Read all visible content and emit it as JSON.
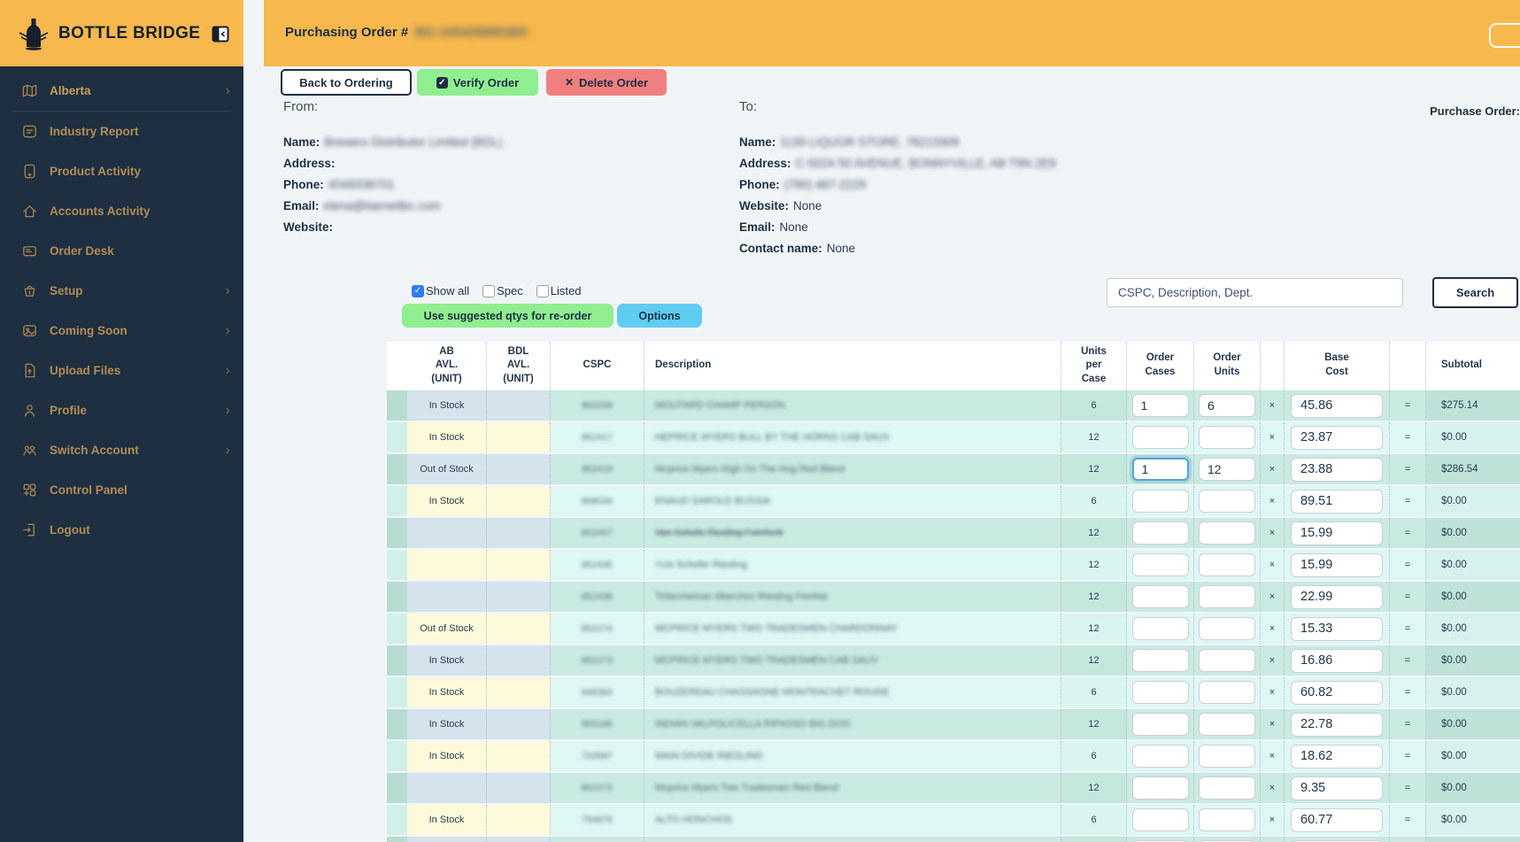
{
  "sidebar": {
    "logo_text": "BOTTLE BRIDGE",
    "items": [
      {
        "label": "Alberta",
        "icon": "map-icon",
        "chevron": true,
        "divider_after": true,
        "active": true
      },
      {
        "label": "Industry Report",
        "icon": "report-icon",
        "chevron": false
      },
      {
        "label": "Product Activity",
        "icon": "product-icon",
        "chevron": false
      },
      {
        "label": "Accounts Activity",
        "icon": "home-icon",
        "chevron": false
      },
      {
        "label": "Order Desk",
        "icon": "order-desk-icon",
        "chevron": false
      },
      {
        "label": "Setup",
        "icon": "basket-icon",
        "chevron": true
      },
      {
        "label": "Coming Soon",
        "icon": "image-icon",
        "chevron": true
      },
      {
        "label": "Upload Files",
        "icon": "upload-icon",
        "chevron": true
      },
      {
        "label": "Profile",
        "icon": "person-icon",
        "chevron": true
      },
      {
        "label": "Switch Account",
        "icon": "people-icon",
        "chevron": true
      },
      {
        "label": "Control Panel",
        "icon": "grid-plus-icon",
        "chevron": false
      },
      {
        "label": "Logout",
        "icon": "logout-icon",
        "chevron": false
      }
    ]
  },
  "header": {
    "title": "Purchasing Order #",
    "order_number_redacted": "BO-100435880365"
  },
  "toolbar": {
    "back_label": "Back to Ordering",
    "verify_label": "Verify Order",
    "delete_label": "Delete Order"
  },
  "purchase_order_label": "Purchase Order:",
  "from": {
    "section_label": "From:",
    "name_label": "Name:",
    "name_value_redacted": "Brewers Distributor Limited (BDL)",
    "address_label": "Address:",
    "address_value": "",
    "phone_label": "Phone:",
    "phone_value_redacted": "4049338701",
    "email_label": "Email:",
    "email_value_redacted": "elena@barnettbc.com",
    "website_label": "Website:",
    "website_value": ""
  },
  "to": {
    "section_label": "To:",
    "name_label": "Name:",
    "name_value_redacted": "1139 LIQUOR STORE, 78213309",
    "address_label": "Address:",
    "address_value_redacted": "C-5024 50 AVENUE, BONNYVILLE, AB T9N 2E9",
    "phone_label": "Phone:",
    "phone_value_redacted": "(780) 487-2229",
    "website_label": "Website:",
    "website_value": "None",
    "email_label": "Email:",
    "email_value": "None",
    "contact_label": "Contact name:",
    "contact_value": "None"
  },
  "filters": {
    "show_all": {
      "label": "Show all",
      "checked": true
    },
    "spec": {
      "label": "Spec",
      "checked": false
    },
    "listed": {
      "label": "Listed",
      "checked": false
    }
  },
  "actions": {
    "suggested_label": "Use suggested qtys for re-order",
    "options_label": "Options"
  },
  "search": {
    "placeholder": "CSPC, Description, Dept.",
    "button_label": "Search"
  },
  "table": {
    "multiply_symbol": "×",
    "equals_symbol": "=",
    "header_cells": [
      {
        "key": "ind",
        "lines": []
      },
      {
        "key": "ab",
        "lines": [
          "AB",
          "AVL.",
          "(UNIT)"
        ]
      },
      {
        "key": "bdl",
        "lines": [
          "BDL",
          "AVL.",
          "(UNIT)"
        ]
      },
      {
        "key": "cspc",
        "lines": [
          "CSPC"
        ]
      },
      {
        "key": "desc",
        "lines": [
          "Description"
        ]
      },
      {
        "key": "units",
        "lines": [
          "Units",
          "per",
          "Case"
        ]
      },
      {
        "key": "cases",
        "lines": [
          "Order",
          "Cases"
        ]
      },
      {
        "key": "ounits",
        "lines": [
          "Order",
          "Units"
        ]
      },
      {
        "key": "x",
        "lines": []
      },
      {
        "key": "base",
        "lines": [
          "Base",
          "Cost"
        ]
      },
      {
        "key": "eq",
        "lines": []
      },
      {
        "key": "sub",
        "lines": [
          "Subtotal"
        ]
      }
    ],
    "rows": [
      {
        "stock": "In Stock",
        "cspc_redacted": "802259",
        "description_redacted": "MOUTARD CHAMP PERSON",
        "strikethrough": false,
        "units_per_case": "6",
        "order_cases": "1",
        "order_units": "6",
        "base_cost": "45.86",
        "subtotal": "$275.14",
        "tone": "mint",
        "focused": false
      },
      {
        "stock": "In Stock",
        "cspc_redacted": "852417",
        "description_redacted": "HEPRICE MYERS BULL BY THE HORNS CAB SAUV",
        "strikethrough": false,
        "units_per_case": "12",
        "order_cases": "",
        "order_units": "",
        "base_cost": "23.87",
        "subtotal": "$0.00",
        "tone": "cyan",
        "focused": false
      },
      {
        "stock": "Out of Stock",
        "cspc_redacted": "852419",
        "description_redacted": "Mcprice Myers High On The Hog Red Blend",
        "strikethrough": false,
        "units_per_case": "12",
        "order_cases": "1",
        "order_units": "12",
        "base_cost": "23.88",
        "subtotal": "$286.54",
        "tone": "mint",
        "focused": true
      },
      {
        "stock": "In Stock",
        "cspc_redacted": "808034",
        "description_redacted": "ENAUD SAROLD BUSSIA",
        "strikethrough": false,
        "units_per_case": "6",
        "order_cases": "",
        "order_units": "",
        "base_cost": "89.51",
        "subtotal": "$0.00",
        "tone": "cyan",
        "focused": false
      },
      {
        "stock": "",
        "cspc_redacted": "852457",
        "description_redacted": "Van Schofe Riesling Feinherb",
        "strikethrough": true,
        "units_per_case": "12",
        "order_cases": "",
        "order_units": "",
        "base_cost": "15.99",
        "subtotal": "$0.00",
        "tone": "mint",
        "focused": false
      },
      {
        "stock": "",
        "cspc_redacted": "852436",
        "description_redacted": "Ycis Schofer Riesling",
        "strikethrough": false,
        "units_per_case": "12",
        "order_cases": "",
        "order_units": "",
        "base_cost": "15.99",
        "subtotal": "$0.00",
        "tone": "cyan",
        "focused": false
      },
      {
        "stock": "",
        "cspc_redacted": "852438",
        "description_redacted": "Trittenheimer Altarchen Riesling Feinher",
        "strikethrough": false,
        "units_per_case": "12",
        "order_cases": "",
        "order_units": "",
        "base_cost": "22.99",
        "subtotal": "$0.00",
        "tone": "mint",
        "focused": false
      },
      {
        "stock": "Out of Stock",
        "cspc_redacted": "852274",
        "description_redacted": "MCPRICE MYERS TWO TRADESMEN CHARDONNAY",
        "strikethrough": false,
        "units_per_case": "12",
        "order_cases": "",
        "order_units": "",
        "base_cost": "15.33",
        "subtotal": "$0.00",
        "tone": "cyan",
        "focused": false
      },
      {
        "stock": "In Stock",
        "cspc_redacted": "852273",
        "description_redacted": "MCPRICE MYERS TWO TRADESMEN CAB SAUV",
        "strikethrough": false,
        "units_per_case": "12",
        "order_cases": "",
        "order_units": "",
        "base_cost": "16.86",
        "subtotal": "$0.00",
        "tone": "mint",
        "focused": false
      },
      {
        "stock": "In Stock",
        "cspc_redacted": "848384",
        "description_redacted": "BOUZEREAU CHASSAGNE MONTRACHET ROUGE",
        "strikethrough": false,
        "units_per_case": "6",
        "order_cases": "",
        "order_units": "",
        "base_cost": "60.82",
        "subtotal": "$0.00",
        "tone": "cyan",
        "focused": false
      },
      {
        "stock": "In Stock",
        "cspc_redacted": "855180",
        "description_redacted": "INDIAN VALPOLICELLA RIPASSO BIG DOG",
        "strikethrough": false,
        "units_per_case": "12",
        "order_cases": "",
        "order_units": "",
        "base_cost": "22.78",
        "subtotal": "$0.00",
        "tone": "mint",
        "focused": false
      },
      {
        "stock": "In Stock",
        "cspc_redacted": "743587",
        "description_redacted": "MAIN DIVIDE RIESLING",
        "strikethrough": false,
        "units_per_case": "6",
        "order_cases": "",
        "order_units": "",
        "base_cost": "18.62",
        "subtotal": "$0.00",
        "tone": "cyan",
        "focused": false
      },
      {
        "stock": "",
        "cspc_redacted": "852272",
        "description_redacted": "Mcprice Myers Two Tradesmen Red Blend",
        "strikethrough": false,
        "units_per_case": "12",
        "order_cases": "",
        "order_units": "",
        "base_cost": "9.35",
        "subtotal": "$0.00",
        "tone": "mint",
        "focused": false
      },
      {
        "stock": "In Stock",
        "cspc_redacted": "794876",
        "description_redacted": "ALTO HONCHOS",
        "strikethrough": false,
        "units_per_case": "6",
        "order_cases": "",
        "order_units": "",
        "base_cost": "60.77",
        "subtotal": "$0.00",
        "tone": "cyan",
        "focused": false
      },
      {
        "stock": "",
        "cspc_redacted": "",
        "description_redacted": "",
        "strikethrough": false,
        "units_per_case": "",
        "order_cases": "",
        "order_units": "",
        "base_cost": "",
        "subtotal": "",
        "tone": "mint",
        "focused": false
      }
    ]
  },
  "colors": {
    "accent_orange": "#f7b84e",
    "sidebar_bg": "#1d2f40",
    "sidebar_text": "#b28b55",
    "verify_green": "#90ee90",
    "delete_red": "#f08080",
    "options_blue": "#5fcdf0",
    "checkbox_blue": "#2d7ff0",
    "row_mint": "#c9eae1",
    "row_cyan": "#def7f4",
    "avail_cell_blue": "#d4e3ec",
    "avail_cell_yellow": "#fcfadb"
  }
}
